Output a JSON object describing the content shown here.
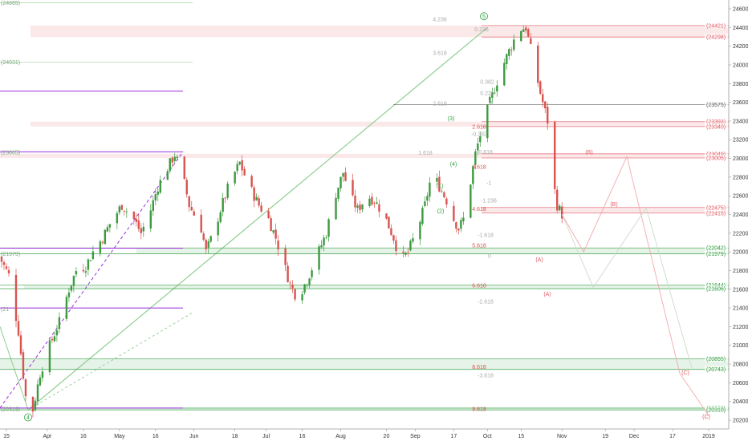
{
  "chart_data": {
    "type": "candlestick",
    "title": "",
    "xlabel": "",
    "ylabel": "",
    "ylim": [
      20100,
      24650
    ],
    "grid": false,
    "legend": "none",
    "x_ticks": [
      {
        "label": "15",
        "date": "2018-03-15"
      },
      {
        "label": "Apr",
        "date": "2018-04-01"
      },
      {
        "label": "16",
        "date": "2018-04-16"
      },
      {
        "label": "May",
        "date": "2018-05-01"
      },
      {
        "label": "16",
        "date": "2018-05-16"
      },
      {
        "label": "Jun",
        "date": "2018-06-01"
      },
      {
        "label": "18",
        "date": "2018-06-18"
      },
      {
        "label": "Jul",
        "date": "2018-07-01"
      },
      {
        "label": "16",
        "date": "2018-07-16"
      },
      {
        "label": "Aug",
        "date": "2018-08-01"
      },
      {
        "label": "20",
        "date": "2018-08-20"
      },
      {
        "label": "Sep",
        "date": "2018-09-01"
      },
      {
        "label": "17",
        "date": "2018-09-17"
      },
      {
        "label": "Oct",
        "date": "2018-10-01"
      },
      {
        "label": "15",
        "date": "2018-10-15"
      },
      {
        "label": "Nov",
        "date": "2018-11-01"
      },
      {
        "label": "19",
        "date": "2018-11-19"
      },
      {
        "label": "Dec",
        "date": "2018-12-01"
      },
      {
        "label": "17",
        "date": "2018-12-17"
      },
      {
        "label": "2019",
        "date": "2019-01-01"
      }
    ],
    "y_ticks": [
      20200,
      20400,
      20600,
      20800,
      21000,
      21200,
      21400,
      21600,
      21800,
      22000,
      22200,
      22400,
      22600,
      22800,
      23000,
      23200,
      23400,
      23600,
      23800,
      24000,
      24200,
      24400,
      24600
    ],
    "price_path": [
      [
        "2018-03-12",
        21950
      ],
      [
        "2018-03-16",
        21750
      ],
      [
        "2018-03-20",
        21150
      ],
      [
        "2018-03-23",
        20450
      ],
      [
        "2018-03-26",
        20310
      ],
      [
        "2018-03-29",
        20700
      ],
      [
        "2018-04-02",
        21000
      ],
      [
        "2018-04-06",
        21250
      ],
      [
        "2018-04-10",
        21600
      ],
      [
        "2018-04-13",
        21800
      ],
      [
        "2018-04-17",
        21850
      ],
      [
        "2018-04-20",
        22000
      ],
      [
        "2018-04-24",
        22150
      ],
      [
        "2018-04-27",
        22300
      ],
      [
        "2018-05-02",
        22500
      ],
      [
        "2018-05-07",
        22350
      ],
      [
        "2018-05-10",
        22200
      ],
      [
        "2018-05-14",
        22450
      ],
      [
        "2018-05-17",
        22700
      ],
      [
        "2018-05-21",
        22900
      ],
      [
        "2018-05-24",
        23040
      ],
      [
        "2018-05-27",
        22850
      ],
      [
        "2018-05-30",
        22500
      ],
      [
        "2018-06-04",
        22250
      ],
      [
        "2018-06-06",
        22000
      ],
      [
        "2018-06-09",
        22200
      ],
      [
        "2018-06-12",
        22450
      ],
      [
        "2018-06-16",
        22750
      ],
      [
        "2018-06-20",
        22950
      ],
      [
        "2018-06-24",
        22700
      ],
      [
        "2018-06-28",
        22500
      ],
      [
        "2018-07-02",
        22350
      ],
      [
        "2018-07-05",
        22150
      ],
      [
        "2018-07-08",
        21900
      ],
      [
        "2018-07-11",
        21650
      ],
      [
        "2018-07-14",
        21500
      ],
      [
        "2018-07-18",
        21700
      ],
      [
        "2018-07-22",
        21950
      ],
      [
        "2018-07-26",
        22200
      ],
      [
        "2018-07-29",
        22550
      ],
      [
        "2018-08-02",
        22850
      ],
      [
        "2018-08-05",
        22600
      ],
      [
        "2018-08-08",
        22450
      ],
      [
        "2018-08-12",
        22600
      ],
      [
        "2018-08-15",
        22550
      ],
      [
        "2018-08-19",
        22400
      ],
      [
        "2018-08-23",
        22150
      ],
      [
        "2018-08-26",
        21900
      ],
      [
        "2018-08-29",
        22000
      ],
      [
        "2018-09-02",
        22250
      ],
      [
        "2018-09-05",
        22500
      ],
      [
        "2018-09-08",
        22850
      ],
      [
        "2018-09-11",
        22700
      ],
      [
        "2018-09-14",
        22550
      ],
      [
        "2018-09-16",
        22400
      ],
      [
        "2018-09-19",
        22250
      ],
      [
        "2018-09-21",
        22350
      ],
      [
        "2018-09-24",
        22750
      ],
      [
        "2018-09-26",
        23050
      ],
      [
        "2018-09-29",
        23350
      ],
      [
        "2018-10-02",
        23600
      ],
      [
        "2018-10-06",
        23900
      ],
      [
        "2018-10-10",
        24150
      ],
      [
        "2018-10-14",
        24380
      ],
      [
        "2018-10-17",
        24400
      ],
      [
        "2018-10-20",
        24050
      ],
      [
        "2018-10-23",
        23700
      ],
      [
        "2018-10-26",
        23400
      ],
      [
        "2018-10-28",
        22800
      ],
      [
        "2018-10-30",
        22500
      ],
      [
        "2018-11-01",
        22400
      ]
    ],
    "levels": [
      {
        "label": "(24421)",
        "value": 24421,
        "color": "#e15b64"
      },
      {
        "label": "(24298)",
        "value": 24298,
        "color": "#e15b64"
      },
      {
        "label": "(23575)",
        "value": 23575,
        "color": "#555555"
      },
      {
        "label": "(23393)",
        "value": 23393,
        "color": "#e15b64"
      },
      {
        "label": "(23340)",
        "value": 23340,
        "color": "#e15b64"
      },
      {
        "label": "(23049)",
        "value": 23049,
        "color": "#e15b64"
      },
      {
        "label": "(23005)",
        "value": 23005,
        "color": "#e15b64"
      },
      {
        "label": "(22475)",
        "value": 22475,
        "color": "#e15b64"
      },
      {
        "label": "(22415)",
        "value": 22415,
        "color": "#e15b64"
      },
      {
        "label": "(22042)",
        "value": 22042,
        "color": "#2e9e3e"
      },
      {
        "label": "(21979)",
        "value": 21979,
        "color": "#2e9e3e"
      },
      {
        "label": "(21644)",
        "value": 21644,
        "color": "#2e9e3e"
      },
      {
        "label": "(21606)",
        "value": 21606,
        "color": "#2e9e3e"
      },
      {
        "label": "(20855)",
        "value": 20855,
        "color": "#2e9e3e"
      },
      {
        "label": "(20743)",
        "value": 20743,
        "color": "#2e9e3e"
      },
      {
        "label": "(20329)",
        "value": 20329,
        "color": "#2e9e3e"
      },
      {
        "label": "(20310)",
        "value": 20310,
        "color": "#2e9e3e"
      }
    ],
    "left_labels": [
      {
        "label": "(24665)",
        "value": 24665
      },
      {
        "label": "(24031)",
        "value": 24031
      },
      {
        "label": "(23065)",
        "value": 23065
      },
      {
        "label": "(21979)",
        "value": 21979
      },
      {
        "label": "(21",
        "value": 21390
      },
      {
        "label": "(20319)",
        "value": 20319
      }
    ],
    "fib_labels": [
      {
        "label": "4.236",
        "value": 24490
      },
      {
        "label": "0.236",
        "value": 24380
      },
      {
        "label": "3.618",
        "value": 24130
      },
      {
        "label": "0.382",
        "value": 23820
      },
      {
        "label": "0.236",
        "value": 23700
      },
      {
        "label": "2.618",
        "value": 23590
      },
      {
        "label": "0",
        "value": 23600
      },
      {
        "label": "2.618",
        "value": 23340
      },
      {
        "label": "-0.382",
        "value": 23260
      },
      {
        "label": "-0.618",
        "value": 23070
      },
      {
        "label": "1.618",
        "value": 23060
      },
      {
        "label": "3.618",
        "value": 22910
      },
      {
        "label": "-1",
        "value": 22740
      },
      {
        "label": "-1.236",
        "value": 22550
      },
      {
        "label": "4.618",
        "value": 22460
      },
      {
        "label": "-1.618",
        "value": 22180
      },
      {
        "label": "5.618",
        "value": 22070
      },
      {
        "label": "0",
        "value": 21960
      },
      {
        "label": "6.618",
        "value": 21640
      },
      {
        "label": "-2.618",
        "value": 21470
      },
      {
        "label": "8.618",
        "value": 20770
      },
      {
        "label": "-3.618",
        "value": 20680
      },
      {
        "label": "9.618",
        "value": 20320
      }
    ],
    "wave_labels": [
      {
        "label": "5",
        "value": 24520,
        "color": "#2e9e3e",
        "circled": true
      },
      {
        "label": "4",
        "value": 20230,
        "color": "#2e9e3e",
        "circled": true
      },
      {
        "label": "(4)",
        "value": 22940,
        "color": "#2e9e3e"
      },
      {
        "label": "(3)",
        "value": 23430,
        "color": "#2e9e3e"
      },
      {
        "label": "(1)",
        "value": 22710,
        "color": "#2e9e3e"
      },
      {
        "label": "(2)",
        "value": 22440,
        "color": "#2e9e3e"
      },
      {
        "label": "(B)",
        "value": 23070,
        "color": "#e15b64"
      },
      {
        "label": "(B)",
        "value": 22510,
        "color": "#e15b64"
      },
      {
        "label": "(A)",
        "value": 21920,
        "color": "#e15b64"
      },
      {
        "label": "(A)",
        "value": 21550,
        "color": "#e15b64"
      },
      {
        "label": "(C)",
        "value": 20710,
        "color": "#e15b64"
      },
      {
        "label": "(C)",
        "value": 20240,
        "color": "#e15b64"
      }
    ],
    "projection_path": [
      [
        "2018-11-01",
        22400
      ],
      [
        "2018-11-10",
        22000
      ],
      [
        "2018-11-28",
        23020
      ],
      [
        "2018-12-20",
        20700
      ],
      [
        "2019-01-01",
        20250
      ]
    ],
    "projection_path_alt": [
      [
        "2018-11-01",
        22400
      ],
      [
        "2018-11-14",
        21620
      ],
      [
        "2018-12-06",
        22470
      ],
      [
        "2018-12-25",
        20760
      ]
    ]
  }
}
